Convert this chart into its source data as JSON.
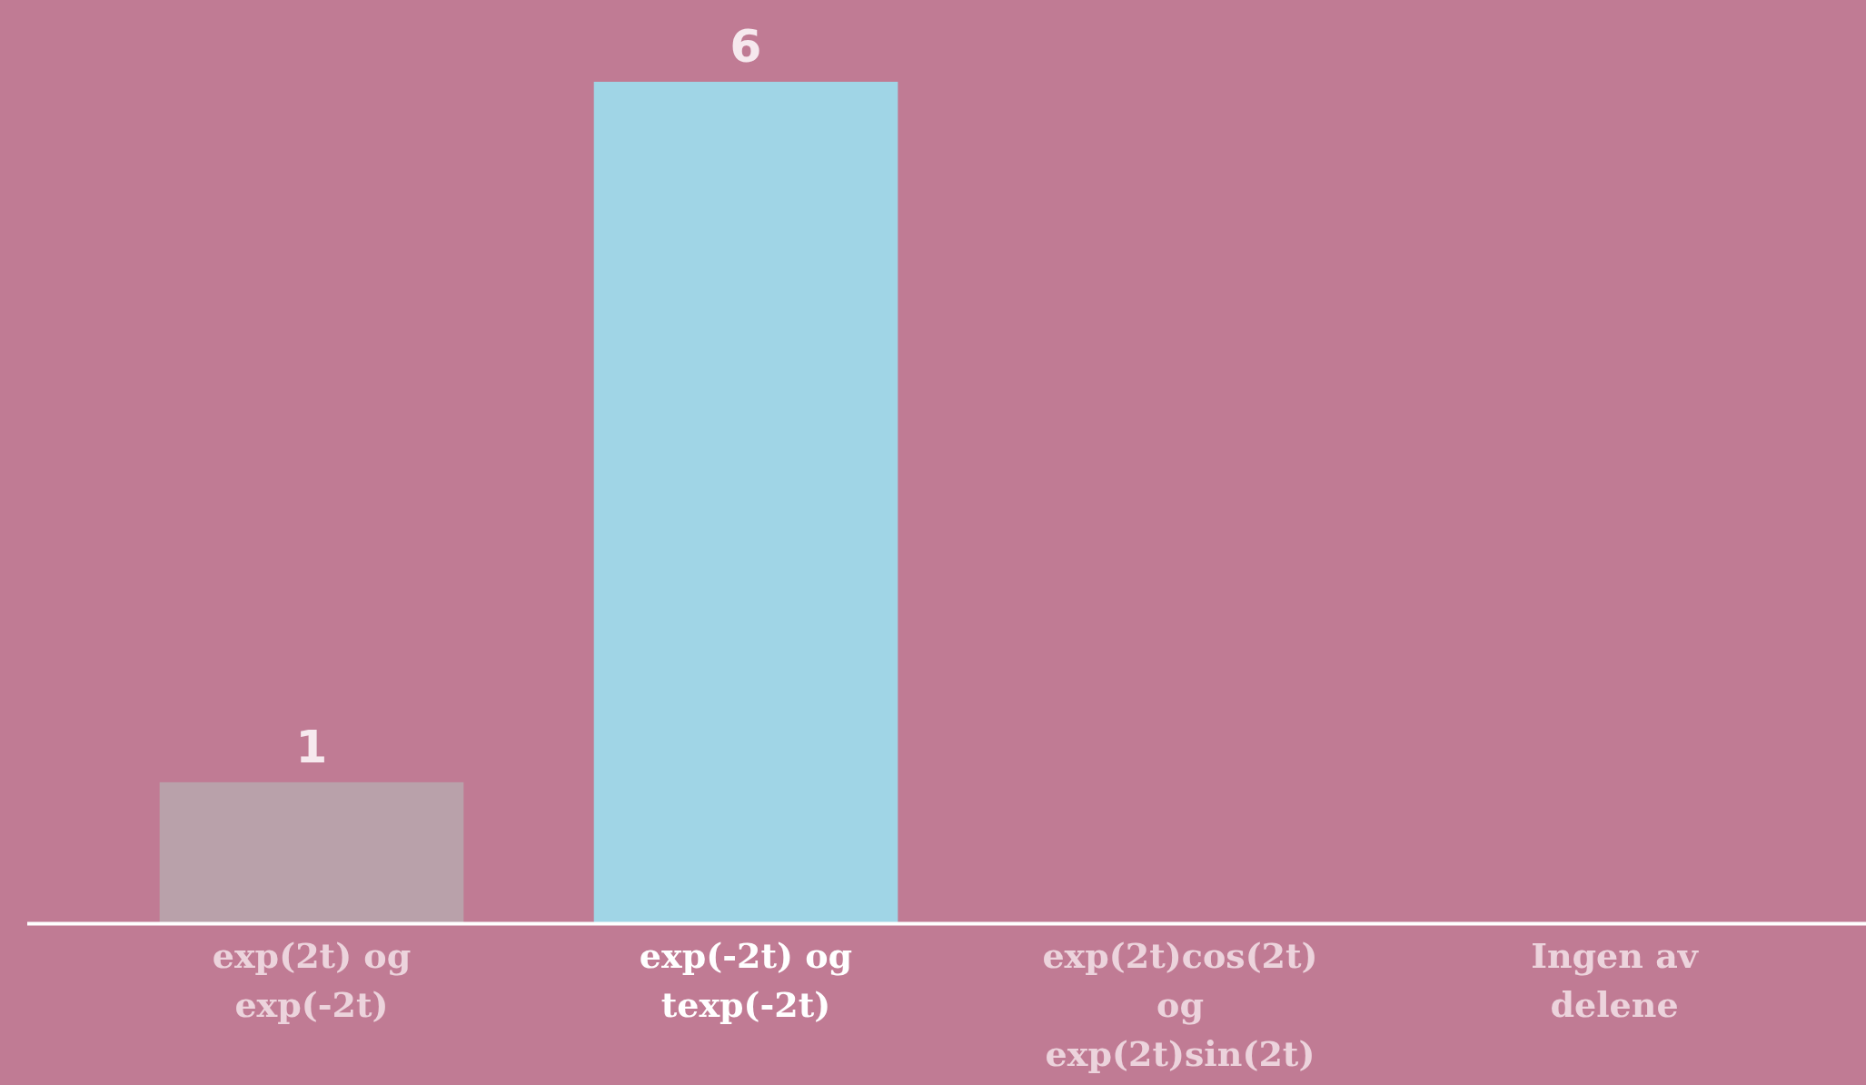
{
  "chart_data": {
    "type": "bar",
    "categories": [
      "exp(2t) og exp(-2t)",
      "exp(-2t) og texp(-2t)",
      "exp(2t)cos(2t) og exp(2t)sin(2t)",
      "Ingen av delene"
    ],
    "values": [
      1,
      6,
      0,
      0
    ],
    "colors": [
      "#b9a1aa",
      "#a0d5e6",
      "#a0d5e6",
      "#a0d5e6"
    ],
    "value_labels": [
      "1",
      "6",
      null,
      null
    ]
  }
}
